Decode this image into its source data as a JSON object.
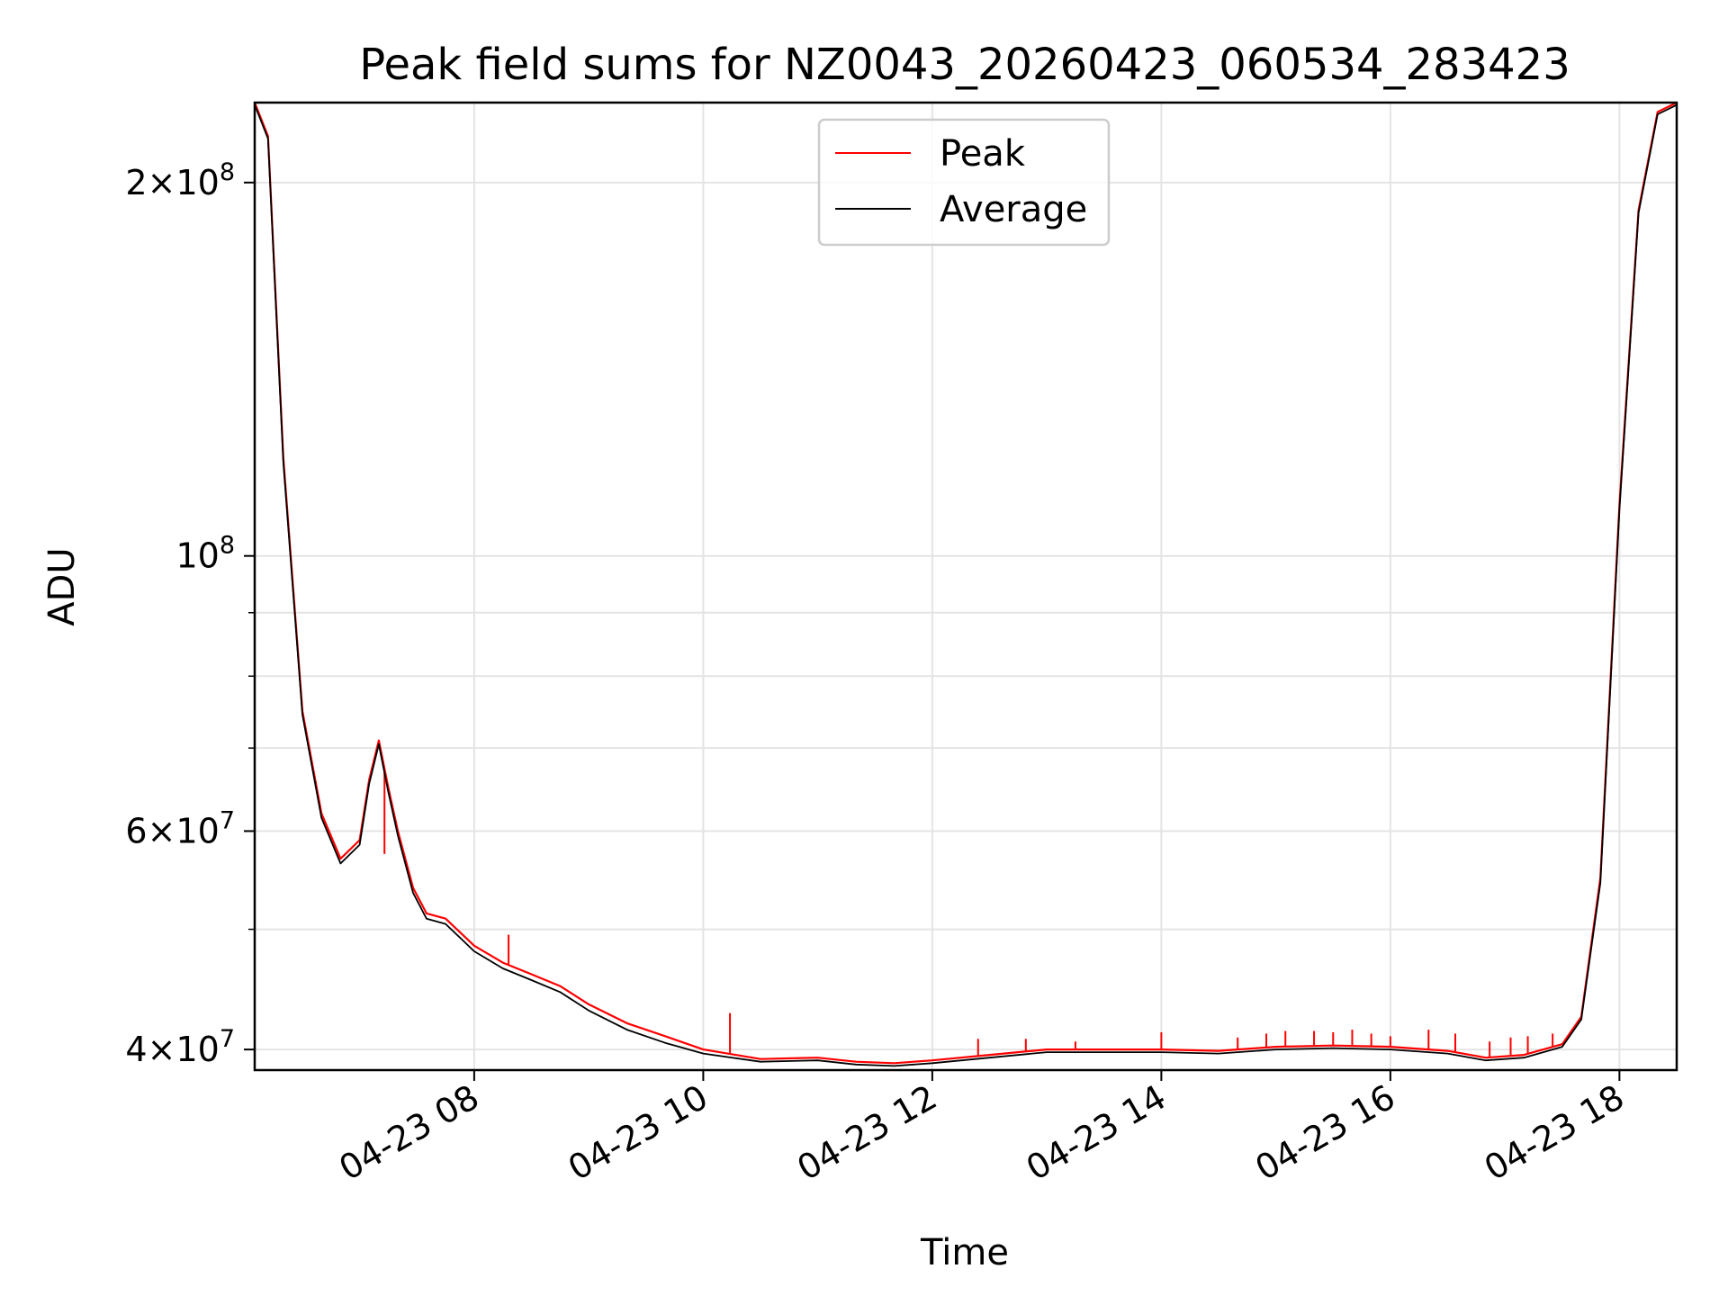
{
  "chart_data": {
    "type": "line",
    "title": "Peak field sums for NZ0043_20260423_060534_283423",
    "xlabel": "Time",
    "ylabel": "ADU",
    "x_scale": "time",
    "y_scale": "log",
    "xlim": [
      "2026-04-23 06:05",
      "2026-04-23 18:30"
    ],
    "ylim": [
      38500000,
      232000000
    ],
    "grid": true,
    "legend_position": "upper center",
    "x_ticks": [
      {
        "value": "2026-04-23 08:00",
        "label": "04-23 08"
      },
      {
        "value": "2026-04-23 10:00",
        "label": "04-23 10"
      },
      {
        "value": "2026-04-23 12:00",
        "label": "04-23 12"
      },
      {
        "value": "2026-04-23 14:00",
        "label": "04-23 14"
      },
      {
        "value": "2026-04-23 16:00",
        "label": "04-23 16"
      },
      {
        "value": "2026-04-23 18:00",
        "label": "04-23 18"
      }
    ],
    "y_major_ticks": [
      {
        "value": 40000000,
        "mantissa": "4",
        "exponent": "7"
      },
      {
        "value": 60000000,
        "mantissa": "6",
        "exponent": "7"
      },
      {
        "value": 100000000,
        "mantissa": "",
        "exponent": "8"
      },
      {
        "value": 200000000,
        "mantissa": "2",
        "exponent": "8"
      }
    ],
    "y_minor_ticks": [
      50000000,
      70000000,
      80000000,
      90000000
    ],
    "series": [
      {
        "name": "Peak",
        "color": "#ff0000",
        "x": [
          "2026-04-23 06:05",
          "2026-04-23 06:12",
          "2026-04-23 06:20",
          "2026-04-23 06:30",
          "2026-04-23 06:40",
          "2026-04-23 06:50",
          "2026-04-23 07:00",
          "2026-04-23 07:05",
          "2026-04-23 07:10",
          "2026-04-23 07:15",
          "2026-04-23 07:20",
          "2026-04-23 07:28",
          "2026-04-23 07:35",
          "2026-04-23 07:45",
          "2026-04-23 08:00",
          "2026-04-23 08:15",
          "2026-04-23 08:30",
          "2026-04-23 08:45",
          "2026-04-23 09:00",
          "2026-04-23 09:20",
          "2026-04-23 09:40",
          "2026-04-23 10:00",
          "2026-04-23 10:30",
          "2026-04-23 11:00",
          "2026-04-23 11:20",
          "2026-04-23 11:40",
          "2026-04-23 12:00",
          "2026-04-23 12:30",
          "2026-04-23 13:00",
          "2026-04-23 13:30",
          "2026-04-23 14:00",
          "2026-04-23 14:30",
          "2026-04-23 15:00",
          "2026-04-23 15:30",
          "2026-04-23 16:00",
          "2026-04-23 16:30",
          "2026-04-23 16:50",
          "2026-04-23 17:10",
          "2026-04-23 17:30",
          "2026-04-23 17:40",
          "2026-04-23 17:50",
          "2026-04-23 18:00",
          "2026-04-23 18:10",
          "2026-04-23 18:20",
          "2026-04-23 18:30"
        ],
        "values": [
          232000000,
          218000000,
          120000000,
          75000000,
          62000000,
          57000000,
          59000000,
          66000000,
          71000000,
          65000000,
          60000000,
          54000000,
          51500000,
          51000000,
          48500000,
          47000000,
          46000000,
          45000000,
          43500000,
          42000000,
          41000000,
          40000000,
          39300000,
          39400000,
          39100000,
          39000000,
          39200000,
          39600000,
          40000000,
          40000000,
          40000000,
          39900000,
          40200000,
          40300000,
          40200000,
          39900000,
          39400000,
          39600000,
          40400000,
          42500000,
          55000000,
          110000000,
          190000000,
          228000000,
          232000000
        ]
      },
      {
        "name": "Average",
        "color": "#000000",
        "x": [
          "2026-04-23 06:05",
          "2026-04-23 06:12",
          "2026-04-23 06:20",
          "2026-04-23 06:30",
          "2026-04-23 06:40",
          "2026-04-23 06:50",
          "2026-04-23 07:00",
          "2026-04-23 07:05",
          "2026-04-23 07:10",
          "2026-04-23 07:15",
          "2026-04-23 07:20",
          "2026-04-23 07:28",
          "2026-04-23 07:35",
          "2026-04-23 07:45",
          "2026-04-23 08:00",
          "2026-04-23 08:15",
          "2026-04-23 08:30",
          "2026-04-23 08:45",
          "2026-04-23 09:00",
          "2026-04-23 09:20",
          "2026-04-23 09:40",
          "2026-04-23 10:00",
          "2026-04-23 10:30",
          "2026-04-23 11:00",
          "2026-04-23 11:20",
          "2026-04-23 11:40",
          "2026-04-23 12:00",
          "2026-04-23 12:30",
          "2026-04-23 13:00",
          "2026-04-23 13:30",
          "2026-04-23 14:00",
          "2026-04-23 14:30",
          "2026-04-23 15:00",
          "2026-04-23 15:30",
          "2026-04-23 16:00",
          "2026-04-23 16:30",
          "2026-04-23 16:50",
          "2026-04-23 17:10",
          "2026-04-23 17:30",
          "2026-04-23 17:40",
          "2026-04-23 17:50",
          "2026-04-23 18:00",
          "2026-04-23 18:10",
          "2026-04-23 18:20",
          "2026-04-23 18:30"
        ],
        "values": [
          231000000,
          217000000,
          119000000,
          74500000,
          61500000,
          56500000,
          58500000,
          65500000,
          70500000,
          64500000,
          59500000,
          53500000,
          51000000,
          50500000,
          48000000,
          46500000,
          45500000,
          44500000,
          43000000,
          41500000,
          40500000,
          39700000,
          39100000,
          39200000,
          38900000,
          38800000,
          39000000,
          39400000,
          39800000,
          39800000,
          39800000,
          39700000,
          40000000,
          40100000,
          40000000,
          39700000,
          39200000,
          39400000,
          40200000,
          42300000,
          54500000,
          109000000,
          189000000,
          227000000,
          231000000
        ]
      }
    ],
    "spikes": {
      "series": "Peak",
      "color": "#ff0000",
      "points": [
        {
          "x": "2026-04-23 07:13",
          "y": 57500000
        },
        {
          "x": "2026-04-23 08:18",
          "y": 49500000
        },
        {
          "x": "2026-04-23 10:14",
          "y": 42800000
        },
        {
          "x": "2026-04-23 12:24",
          "y": 40800000
        },
        {
          "x": "2026-04-23 12:49",
          "y": 40800000
        },
        {
          "x": "2026-04-23 13:15",
          "y": 40600000
        },
        {
          "x": "2026-04-23 14:00",
          "y": 41300000
        },
        {
          "x": "2026-04-23 14:40",
          "y": 40900000
        },
        {
          "x": "2026-04-23 14:55",
          "y": 41200000
        },
        {
          "x": "2026-04-23 15:05",
          "y": 41400000
        },
        {
          "x": "2026-04-23 15:20",
          "y": 41400000
        },
        {
          "x": "2026-04-23 15:30",
          "y": 41300000
        },
        {
          "x": "2026-04-23 15:40",
          "y": 41500000
        },
        {
          "x": "2026-04-23 15:50",
          "y": 41200000
        },
        {
          "x": "2026-04-23 16:00",
          "y": 41000000
        },
        {
          "x": "2026-04-23 16:20",
          "y": 41500000
        },
        {
          "x": "2026-04-23 16:34",
          "y": 41200000
        },
        {
          "x": "2026-04-23 16:52",
          "y": 40600000
        },
        {
          "x": "2026-04-23 17:03",
          "y": 40900000
        },
        {
          "x": "2026-04-23 17:12",
          "y": 41000000
        },
        {
          "x": "2026-04-23 17:25",
          "y": 41200000
        }
      ]
    }
  }
}
